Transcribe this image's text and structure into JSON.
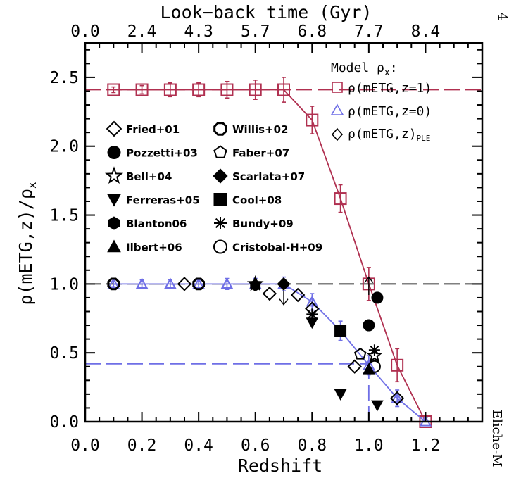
{
  "page_number": "4",
  "side_text": "Eliche-M",
  "chart_data": {
    "type": "scatter",
    "xlabel": "Redshift",
    "ylabel": "ρ(mETG,z)/ρ",
    "ylabel_sub": "x",
    "top_axis_label": "Look−back time (Gyr)",
    "xlim": [
      0.0,
      1.4
    ],
    "ylim": [
      0.0,
      2.75
    ],
    "x_ticks": [
      0.0,
      0.2,
      0.4,
      0.6,
      0.8,
      1.0,
      1.2
    ],
    "x_tick_labels": [
      "0.0",
      "0.2",
      "0.4",
      "0.6",
      "0.8",
      "1.0",
      "1.2"
    ],
    "y_ticks": [
      0.0,
      0.5,
      1.0,
      1.5,
      2.0,
      2.5
    ],
    "y_tick_labels": [
      "0.0",
      "0.5",
      "1.0",
      "1.5",
      "2.0",
      "2.5"
    ],
    "top_tick_positions": [
      0.0,
      0.2,
      0.4,
      0.6,
      0.8,
      1.0,
      1.2
    ],
    "top_tick_labels": [
      "0.0",
      "2.4",
      "4.3",
      "5.7",
      "6.8",
      "7.7",
      "8.4"
    ],
    "grid": false,
    "reference_lines": [
      {
        "orientation": "horizontal",
        "y": 2.41,
        "color": "#b03050",
        "style": "dashed"
      },
      {
        "orientation": "horizontal",
        "y": 1.0,
        "color": "#000000",
        "style": "dashed"
      },
      {
        "orientation": "horizontal",
        "y": 0.42,
        "color": "#6f6fe6",
        "style": "dashed",
        "x_range": [
          0.0,
          1.0
        ]
      },
      {
        "orientation": "vertical",
        "x": 1.0,
        "color": "#6f6fe6",
        "style": "dashed",
        "y_range": [
          0.0,
          0.42
        ]
      }
    ],
    "model_legend_title": "Model ρ",
    "model_legend_title_sub": "x",
    "model_series": [
      {
        "name": "ρ(mETG,z=1)",
        "marker": "square-open",
        "color": "#b03050",
        "x": [
          0.1,
          0.2,
          0.3,
          0.4,
          0.5,
          0.6,
          0.7,
          0.8,
          0.9,
          1.0,
          1.1,
          1.2
        ],
        "y": [
          2.41,
          2.41,
          2.41,
          2.41,
          2.41,
          2.41,
          2.41,
          2.19,
          1.62,
          1.0,
          0.41,
          0.0
        ],
        "err": [
          0.02,
          0.03,
          0.05,
          0.05,
          0.06,
          0.07,
          0.09,
          0.1,
          0.1,
          0.12,
          0.12,
          0.03
        ]
      },
      {
        "name": "ρ(mETG,z=0)",
        "marker": "triangle-open",
        "color": "#6f6fe6",
        "x": [
          0.1,
          0.2,
          0.3,
          0.4,
          0.5,
          0.6,
          0.7,
          0.8,
          0.9,
          1.0,
          1.1,
          1.2
        ],
        "y": [
          1.0,
          1.0,
          1.0,
          1.0,
          1.0,
          1.0,
          1.0,
          0.87,
          0.66,
          0.41,
          0.17,
          0.0
        ],
        "err": [
          0.02,
          0.03,
          0.03,
          0.03,
          0.04,
          0.04,
          0.05,
          0.06,
          0.07,
          0.07,
          0.06,
          0.03
        ]
      },
      {
        "name": "ρ(mETG,z)",
        "name_sub": "PLE",
        "marker": "diamond-open",
        "color": "#000000",
        "x": [
          1.1
        ],
        "y": [
          0.17
        ],
        "err": []
      }
    ],
    "observed_series": [
      {
        "name": "Fried+01",
        "marker": "diamond-open",
        "points": [
          [
            0.35,
            1.0
          ],
          [
            0.65,
            0.93
          ],
          [
            0.75,
            0.92
          ],
          [
            0.8,
            0.82
          ],
          [
            0.95,
            0.4
          ],
          [
            1.1,
            0.17
          ]
        ]
      },
      {
        "name": "Willis+02",
        "marker": "cog-open",
        "points": [
          [
            0.1,
            1.0
          ],
          [
            0.4,
            1.0
          ]
        ]
      },
      {
        "name": "Pozzetti+03",
        "marker": "circle-filled",
        "points": [
          [
            1.0,
            0.7
          ],
          [
            1.03,
            0.9
          ]
        ]
      },
      {
        "name": "Faber+07",
        "marker": "pentagon-open",
        "points": [
          [
            0.97,
            0.49
          ]
        ]
      },
      {
        "name": "Bell+04",
        "marker": "star-open",
        "points": [
          [
            0.6,
            1.0
          ],
          [
            1.02,
            0.48
          ]
        ]
      },
      {
        "name": "Scarlata+07",
        "marker": "diamond-filled",
        "points": [
          [
            0.7,
            1.0
          ]
        ]
      },
      {
        "name": "Ferreras+05",
        "marker": "triangle-down-filled",
        "points": [
          [
            0.8,
            0.72
          ],
          [
            0.9,
            0.2
          ],
          [
            1.03,
            0.12
          ]
        ]
      },
      {
        "name": "Cool+08",
        "marker": "square-filled",
        "points": [
          [
            0.9,
            0.66
          ]
        ]
      },
      {
        "name": "Blanton06",
        "marker": "hexagon-filled",
        "points": [
          [
            0.6,
            0.99
          ]
        ]
      },
      {
        "name": "Bundy+09",
        "marker": "asterisk",
        "points": [
          [
            0.8,
            0.78
          ],
          [
            1.02,
            0.52
          ]
        ]
      },
      {
        "name": "Ilbert+06",
        "marker": "triangle-up-filled",
        "points": [
          [
            1.0,
            0.38
          ]
        ]
      },
      {
        "name": "Cristobal-H+09",
        "marker": "circle-open",
        "points": [
          [
            1.02,
            0.4
          ]
        ]
      }
    ],
    "arrows": [
      {
        "x": 0.7,
        "y_from": 0.95,
        "y_to": 0.85,
        "direction": "down"
      },
      {
        "x": 1.0,
        "y_from": 0.92,
        "y_to": 1.05,
        "direction": "up"
      }
    ]
  }
}
